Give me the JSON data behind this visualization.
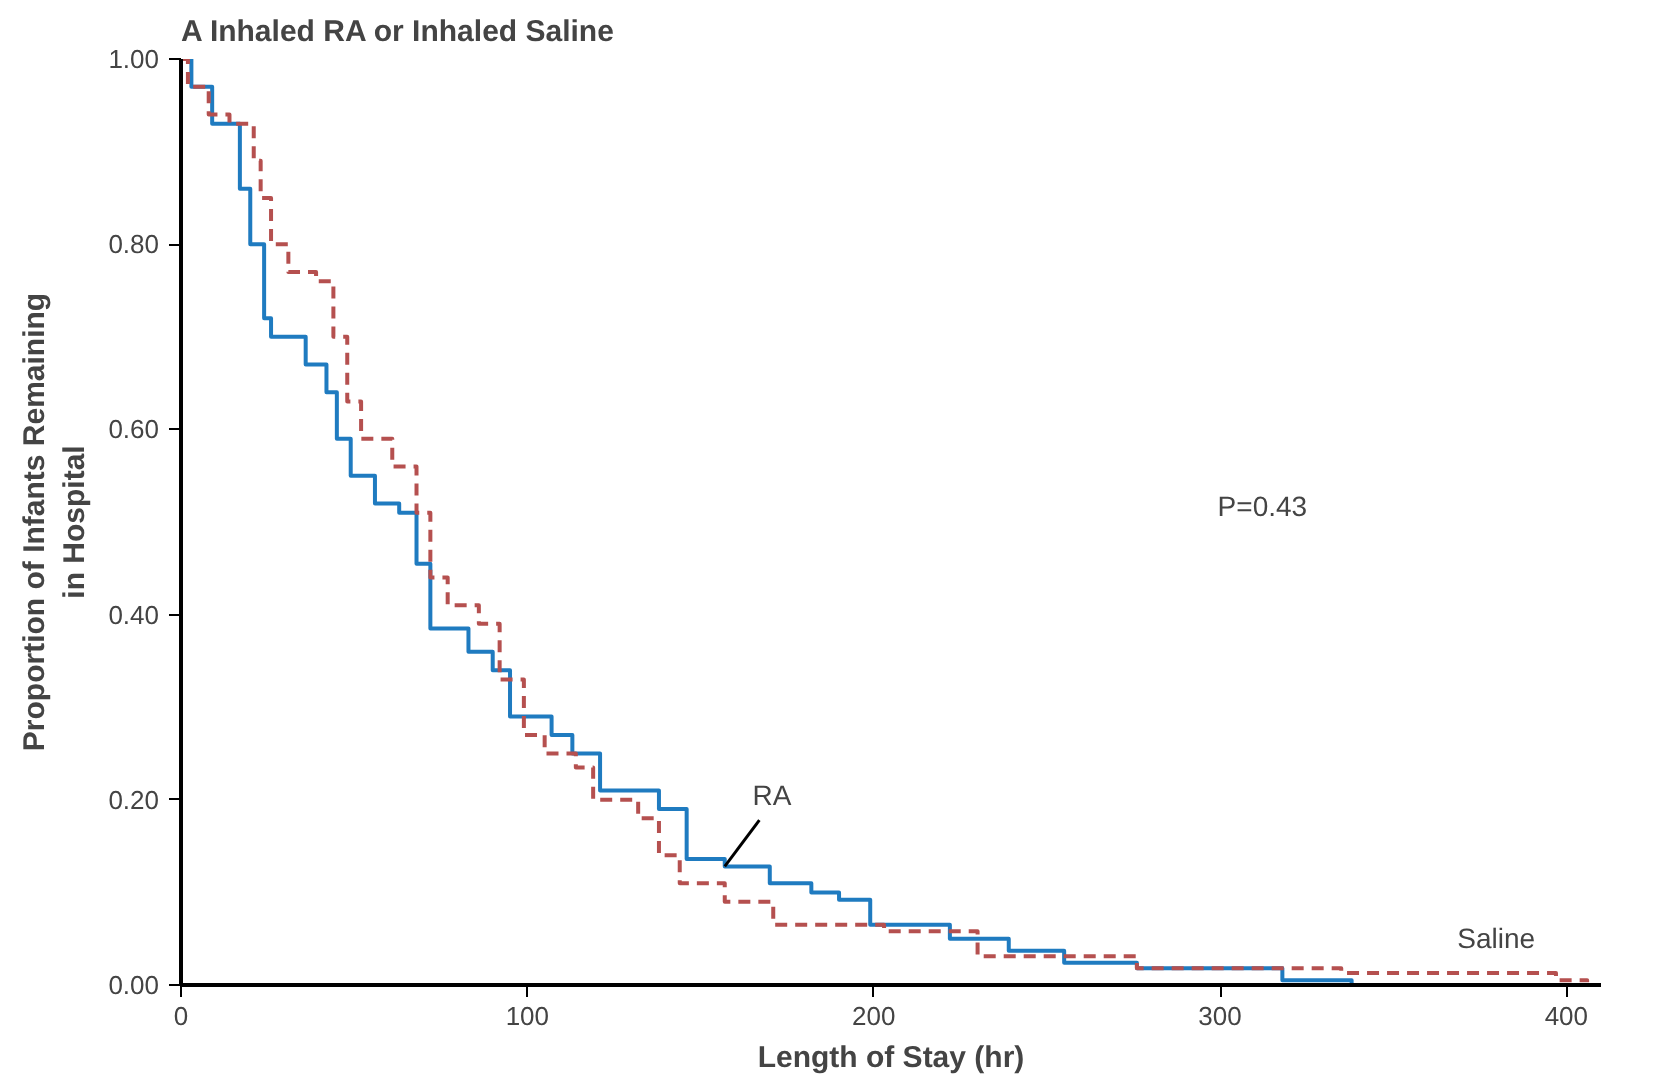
{
  "chart_data": {
    "type": "step",
    "title": "A  Inhaled RA or Inhaled Saline",
    "xlabel": "Length of Stay (hr)",
    "ylabel": "Proportion of Infants Remaining\nin Hospital",
    "xlim": [
      0,
      410
    ],
    "xticks": [
      0,
      100,
      200,
      300,
      400
    ],
    "ylim": [
      0,
      1
    ],
    "yticks": [
      {
        "value": 0,
        "label": "0.00"
      },
      {
        "value": 0.2,
        "label": "0.20"
      },
      {
        "value": 0.4,
        "label": "0.40"
      },
      {
        "value": 0.6,
        "label": "0.60"
      },
      {
        "value": 0.8,
        "label": "0.80"
      },
      {
        "value": 1,
        "label": "1.00"
      }
    ],
    "grid": false,
    "legend": false,
    "annotations": [
      "P=0.43"
    ],
    "series": [
      {
        "name": "RA",
        "color": "#1f7bc0",
        "line_style": "solid",
        "x": [
          0,
          3,
          9,
          14,
          17,
          20,
          24,
          26,
          33,
          36,
          42,
          45,
          49,
          56,
          63,
          68,
          72,
          83,
          90,
          95,
          107,
          113,
          121,
          138,
          146,
          157,
          170,
          182,
          190,
          199,
          222,
          239,
          255,
          276,
          318,
          338
        ],
        "values": [
          1.0,
          0.97,
          0.93,
          0.93,
          0.86,
          0.8,
          0.72,
          0.7,
          0.7,
          0.67,
          0.64,
          0.59,
          0.55,
          0.52,
          0.51,
          0.455,
          0.385,
          0.36,
          0.34,
          0.29,
          0.27,
          0.25,
          0.21,
          0.19,
          0.136,
          0.128,
          0.11,
          0.1,
          0.092,
          0.065,
          0.05,
          0.037,
          0.024,
          0.018,
          0.005,
          0.0
        ]
      },
      {
        "name": "Saline",
        "color": "#b5504f",
        "line_style": "dashed",
        "x": [
          0,
          2,
          8,
          14,
          21,
          23,
          26,
          31,
          39,
          44,
          48,
          52,
          61,
          68,
          72,
          77,
          86,
          92,
          99,
          105,
          114,
          119,
          132,
          138,
          144,
          157,
          171,
          203,
          230,
          276,
          335,
          397,
          406
        ],
        "values": [
          1.0,
          0.97,
          0.94,
          0.93,
          0.89,
          0.85,
          0.8,
          0.77,
          0.76,
          0.7,
          0.63,
          0.59,
          0.56,
          0.51,
          0.44,
          0.41,
          0.39,
          0.33,
          0.27,
          0.25,
          0.235,
          0.2,
          0.18,
          0.14,
          0.11,
          0.09,
          0.065,
          0.058,
          0.031,
          0.018,
          0.013,
          0.005,
          0.003
        ]
      }
    ]
  }
}
